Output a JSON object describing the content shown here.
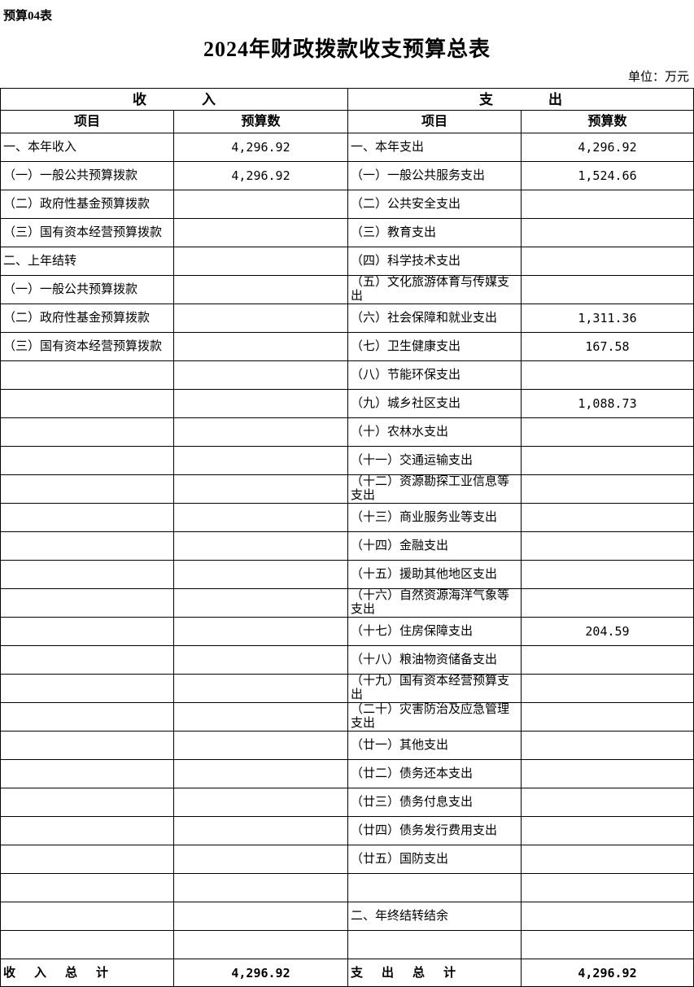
{
  "page": {
    "sheet_label": "预算04表",
    "title": "2024年财政拨款收支预算总表",
    "unit": "单位：万元"
  },
  "table": {
    "revenue_header": "收　　　　入",
    "expenditure_header": "支　　　　出",
    "item_header": "项目",
    "budget_header": "预算数",
    "rows": [
      {
        "revenue_item": "一、本年收入",
        "revenue_value": "4,296.92",
        "expense_item": "一、本年支出",
        "expense_value": "4,296.92"
      },
      {
        "revenue_item": "（一）一般公共预算拨款",
        "revenue_value": "4,296.92",
        "expense_item": "（一）一般公共服务支出",
        "expense_value": "1,524.66"
      },
      {
        "revenue_item": "（二）政府性基金预算拨款",
        "revenue_value": "",
        "expense_item": "（二）公共安全支出",
        "expense_value": ""
      },
      {
        "revenue_item": "（三）国有资本经营预算拨款",
        "revenue_value": "",
        "expense_item": "（三）教育支出",
        "expense_value": ""
      },
      {
        "revenue_item": "二、上年结转",
        "revenue_value": "",
        "expense_item": "（四）科学技术支出",
        "expense_value": ""
      },
      {
        "revenue_item": "（一）一般公共预算拨款",
        "revenue_value": "",
        "expense_item": "（五）文化旅游体育与传媒支出",
        "expense_value": ""
      },
      {
        "revenue_item": "（二）政府性基金预算拨款",
        "revenue_value": "",
        "expense_item": "（六）社会保障和就业支出",
        "expense_value": "1,311.36"
      },
      {
        "revenue_item": "（三）国有资本经营预算拨款",
        "revenue_value": "",
        "expense_item": "（七）卫生健康支出",
        "expense_value": "167.58"
      },
      {
        "revenue_item": "",
        "revenue_value": "",
        "expense_item": "（八）节能环保支出",
        "expense_value": ""
      },
      {
        "revenue_item": "",
        "revenue_value": "",
        "expense_item": "（九）城乡社区支出",
        "expense_value": "1,088.73"
      },
      {
        "revenue_item": "",
        "revenue_value": "",
        "expense_item": "（十）农林水支出",
        "expense_value": ""
      },
      {
        "revenue_item": "",
        "revenue_value": "",
        "expense_item": "（十一）交通运输支出",
        "expense_value": ""
      },
      {
        "revenue_item": "",
        "revenue_value": "",
        "expense_item": "（十二）资源勘探工业信息等支出",
        "expense_value": ""
      },
      {
        "revenue_item": "",
        "revenue_value": "",
        "expense_item": "（十三）商业服务业等支出",
        "expense_value": ""
      },
      {
        "revenue_item": "",
        "revenue_value": "",
        "expense_item": "（十四）金融支出",
        "expense_value": ""
      },
      {
        "revenue_item": "",
        "revenue_value": "",
        "expense_item": "（十五）援助其他地区支出",
        "expense_value": ""
      },
      {
        "revenue_item": "",
        "revenue_value": "",
        "expense_item": "（十六）自然资源海洋气象等支出",
        "expense_value": ""
      },
      {
        "revenue_item": "",
        "revenue_value": "",
        "expense_item": "（十七）住房保障支出",
        "expense_value": "204.59"
      },
      {
        "revenue_item": "",
        "revenue_value": "",
        "expense_item": "（十八）粮油物资储备支出",
        "expense_value": ""
      },
      {
        "revenue_item": "",
        "revenue_value": "",
        "expense_item": "（十九）国有资本经营预算支出",
        "expense_value": ""
      },
      {
        "revenue_item": "",
        "revenue_value": "",
        "expense_item": "（二十）灾害防治及应急管理支出",
        "expense_value": ""
      },
      {
        "revenue_item": "",
        "revenue_value": "",
        "expense_item": "（廿一）其他支出",
        "expense_value": ""
      },
      {
        "revenue_item": "",
        "revenue_value": "",
        "expense_item": "（廿二）债务还本支出",
        "expense_value": ""
      },
      {
        "revenue_item": "",
        "revenue_value": "",
        "expense_item": "（廿三）债务付息支出",
        "expense_value": ""
      },
      {
        "revenue_item": "",
        "revenue_value": "",
        "expense_item": "（廿四）债务发行费用支出",
        "expense_value": ""
      },
      {
        "revenue_item": "",
        "revenue_value": "",
        "expense_item": "（廿五）国防支出",
        "expense_value": ""
      },
      {
        "revenue_item": "",
        "revenue_value": "",
        "expense_item": "",
        "expense_value": ""
      },
      {
        "revenue_item": "",
        "revenue_value": "",
        "expense_item": "二、年终结转结余",
        "expense_value": ""
      },
      {
        "revenue_item": "",
        "revenue_value": "",
        "expense_item": "",
        "expense_value": ""
      }
    ],
    "total_row": {
      "revenue_item": "收　入　总　计",
      "revenue_value": "4,296.92",
      "expense_item": "支　出　总　计",
      "expense_value": "4,296.92"
    }
  }
}
